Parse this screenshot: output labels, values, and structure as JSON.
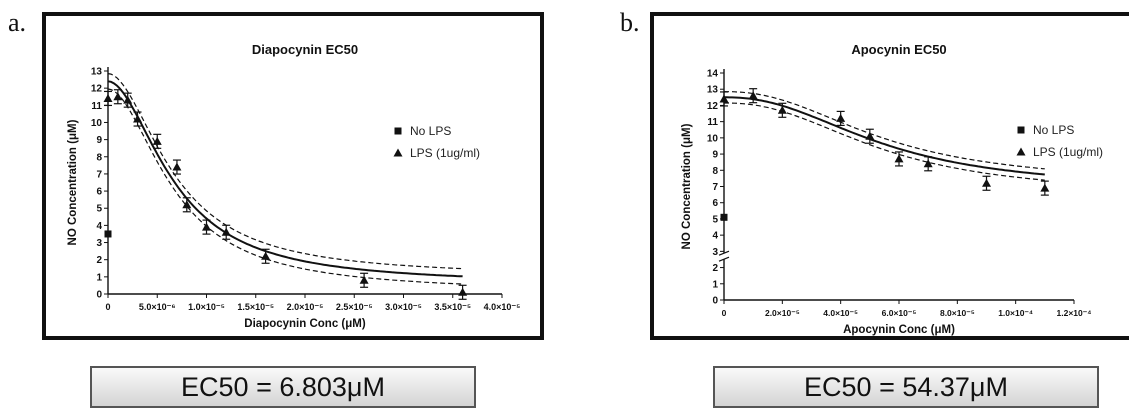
{
  "panels": {
    "a": {
      "letter": "a.",
      "ec50": "EC50 = 6.803μM"
    },
    "b": {
      "letter": "b.",
      "ec50": "EC50 = 54.37μM"
    }
  },
  "chart_data": [
    {
      "type": "scatter",
      "title": "Diapocynin EC50",
      "xlabel": "Diapocynin  Conc (μM)",
      "ylabel": "NO Concentration (μM)",
      "xlim": [
        0,
        4e-05
      ],
      "ylim": [
        0,
        13
      ],
      "xticks": [
        {
          "v": 0,
          "label": "0"
        },
        {
          "v": 5e-06,
          "label": "5.0×10⁻⁶"
        },
        {
          "v": 1e-05,
          "label": "1.0×10⁻⁵"
        },
        {
          "v": 1.5e-05,
          "label": "1.5×10⁻⁵"
        },
        {
          "v": 2e-05,
          "label": "2.0×10⁻⁵"
        },
        {
          "v": 2.5e-05,
          "label": "2.5×10⁻⁵"
        },
        {
          "v": 3e-05,
          "label": "3.0×10⁻⁵"
        },
        {
          "v": 3.5e-05,
          "label": "3.5×10⁻⁵"
        },
        {
          "v": 4e-05,
          "label": "4.0×10⁻⁵"
        }
      ],
      "yticks": [
        0,
        1,
        2,
        3,
        4,
        5,
        6,
        7,
        8,
        9,
        10,
        11,
        12,
        13
      ],
      "legend_position": "right",
      "series": [
        {
          "name": "No LPS",
          "marker": "square",
          "points": [
            [
              0,
              3.5
            ]
          ]
        },
        {
          "name": "LPS (1ug/ml)",
          "marker": "triangle",
          "points": [
            [
              0,
              11.4
            ],
            [
              1e-06,
              11.5
            ],
            [
              2e-06,
              11.3
            ],
            [
              3e-06,
              10.2
            ],
            [
              5e-06,
              8.9
            ],
            [
              7e-06,
              7.4
            ],
            [
              8e-06,
              5.2
            ],
            [
              1e-05,
              3.9
            ],
            [
              1.2e-05,
              3.6
            ],
            [
              1.6e-05,
              2.2
            ],
            [
              2.6e-05,
              0.8
            ],
            [
              3.6e-05,
              0.1
            ]
          ]
        }
      ],
      "fit": {
        "top": 12.4,
        "bottom": 0.55,
        "ec50": 6.803e-06,
        "hill": 1.9,
        "band": 0.45,
        "x_start": 0,
        "x_end": 3.6e-05
      }
    },
    {
      "type": "scatter",
      "title": "Apocynin EC50",
      "xlabel": "Apocynin Conc (μM)",
      "ylabel": "NO  Concentration (μM)",
      "xlim": [
        0,
        0.00012
      ],
      "ylim": [
        0,
        14
      ],
      "y_axis_break": [
        0,
        5
      ],
      "xticks": [
        {
          "v": 0,
          "label": "0"
        },
        {
          "v": 2e-05,
          "label": "2.0×10⁻⁵"
        },
        {
          "v": 4e-05,
          "label": "4.0×10⁻⁵"
        },
        {
          "v": 6e-05,
          "label": "6.0×10⁻⁵"
        },
        {
          "v": 8e-05,
          "label": "8.0×10⁻⁵"
        },
        {
          "v": 0.0001,
          "label": "1.0×10⁻⁴"
        },
        {
          "v": 0.00012,
          "label": "1.2×10⁻⁴"
        }
      ],
      "yticks": [
        0,
        1,
        2,
        3,
        4,
        5,
        6,
        7,
        8,
        9,
        10,
        11,
        12,
        13,
        14
      ],
      "legend_position": "right",
      "series": [
        {
          "name": "No LPS",
          "marker": "square",
          "points": [
            [
              0,
              5.1
            ]
          ]
        },
        {
          "name": "LPS (1ug/ml)",
          "marker": "triangle",
          "points": [
            [
              0,
              12.4
            ],
            [
              1e-05,
              12.6
            ],
            [
              2e-05,
              11.7
            ],
            [
              4e-05,
              11.2
            ],
            [
              5e-05,
              10.1
            ],
            [
              6e-05,
              8.7
            ],
            [
              7e-05,
              8.4
            ],
            [
              9e-05,
              7.2
            ],
            [
              0.00011,
              6.9
            ]
          ]
        }
      ],
      "fit": {
        "top": 12.5,
        "bottom": 6.8,
        "ec50": 5.437e-05,
        "hill": 2.3,
        "band": 0.35,
        "x_start": 0,
        "x_end": 0.00011
      }
    }
  ]
}
